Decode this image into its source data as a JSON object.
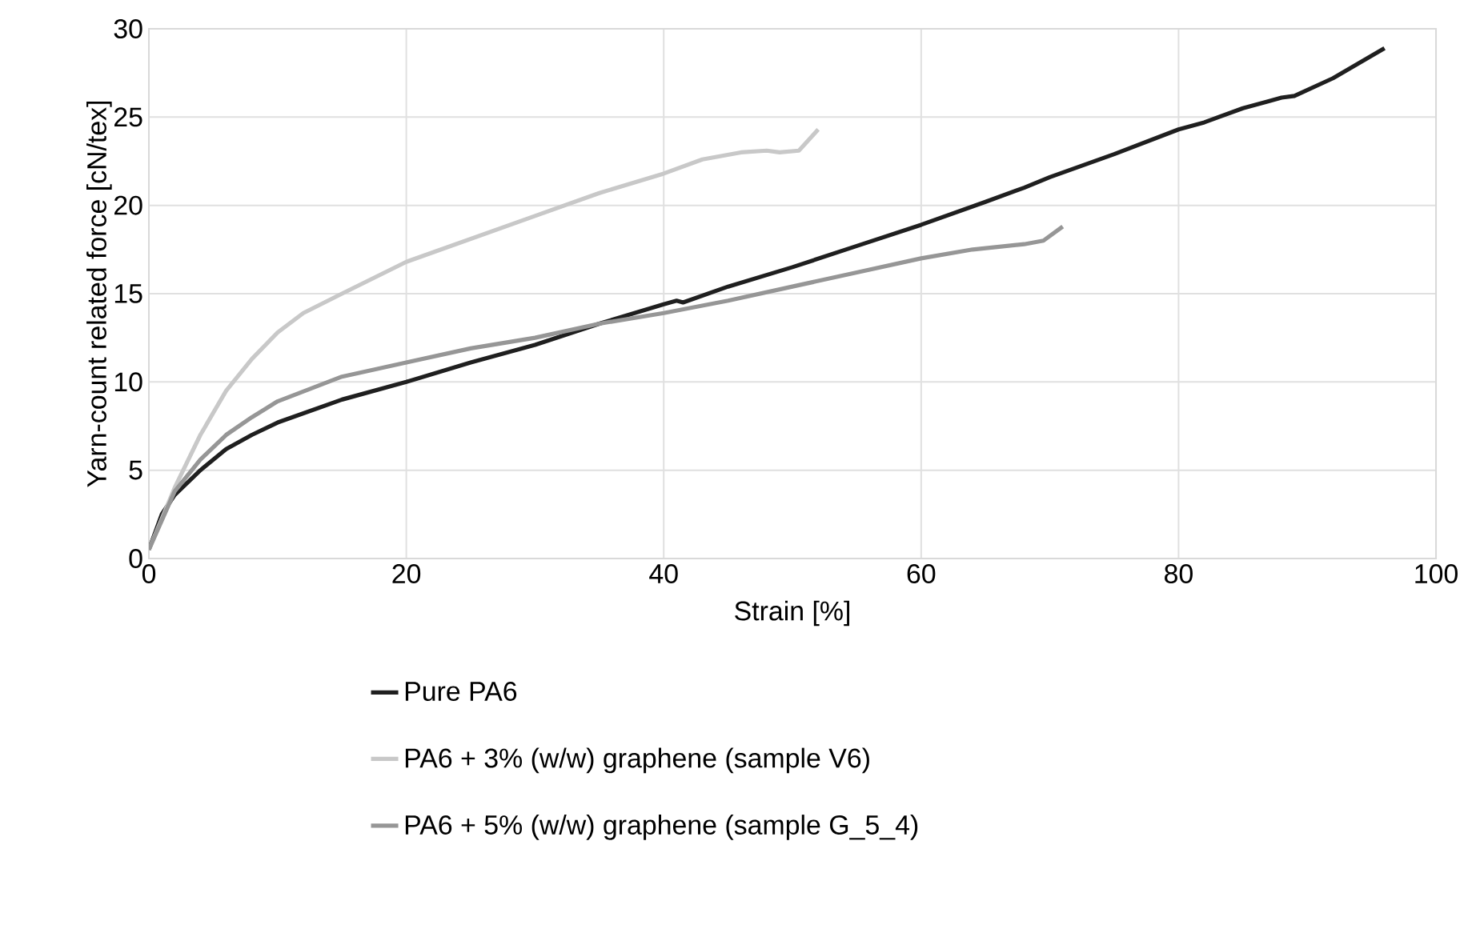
{
  "chart_data": {
    "type": "line",
    "xlabel": "Strain [%]",
    "ylabel": "Yarn-count related force [cN/tex]",
    "xlim": [
      0,
      100
    ],
    "ylim": [
      0,
      30
    ],
    "xticks": [
      0,
      20,
      40,
      60,
      80,
      100
    ],
    "yticks": [
      0,
      5,
      10,
      15,
      20,
      25,
      30
    ],
    "grid": true,
    "legend": "bottom",
    "series": [
      {
        "name": "Pure PA6",
        "color": "#1f1f1f",
        "x": [
          0,
          1,
          2,
          4,
          6,
          8,
          10,
          15,
          20,
          25,
          30,
          35,
          40,
          41,
          41.5,
          45,
          50,
          55,
          60,
          65,
          68,
          70,
          75,
          80,
          82,
          85,
          87,
          88,
          89,
          92,
          96
        ],
        "values": [
          0.5,
          2.5,
          3.6,
          5,
          6.2,
          7,
          7.7,
          9,
          10,
          11.1,
          12.1,
          13.3,
          14.4,
          14.6,
          14.5,
          15.4,
          16.5,
          17.7,
          18.9,
          20.2,
          21,
          21.6,
          22.9,
          24.3,
          24.7,
          25.5,
          25.9,
          26.1,
          26.2,
          27.2,
          28.9
        ]
      },
      {
        "name": "PA6 + 3% (w/w) graphene (sample V6)",
        "color": "#c8c8c8",
        "x": [
          0,
          2,
          4,
          6,
          8,
          10,
          12,
          15,
          20,
          25,
          30,
          35,
          40,
          43,
          46,
          48,
          49,
          50.5,
          52
        ],
        "values": [
          0.5,
          4,
          7,
          9.5,
          11.3,
          12.8,
          13.9,
          15,
          16.8,
          18.1,
          19.4,
          20.7,
          21.8,
          22.6,
          23,
          23.1,
          23,
          23.1,
          24.3
        ]
      },
      {
        "name": "PA6 + 5% (w/w) graphene (sample G_5_4)",
        "color": "#969696",
        "x": [
          0,
          2,
          4,
          6,
          8,
          10,
          15,
          20,
          25,
          30,
          35,
          40,
          45,
          50,
          55,
          60,
          64,
          68,
          69.5,
          71
        ],
        "values": [
          0.5,
          3.8,
          5.6,
          7,
          8,
          8.9,
          10.3,
          11.1,
          11.9,
          12.5,
          13.3,
          13.9,
          14.6,
          15.4,
          16.2,
          17,
          17.5,
          17.8,
          18,
          18.8
        ]
      }
    ]
  }
}
